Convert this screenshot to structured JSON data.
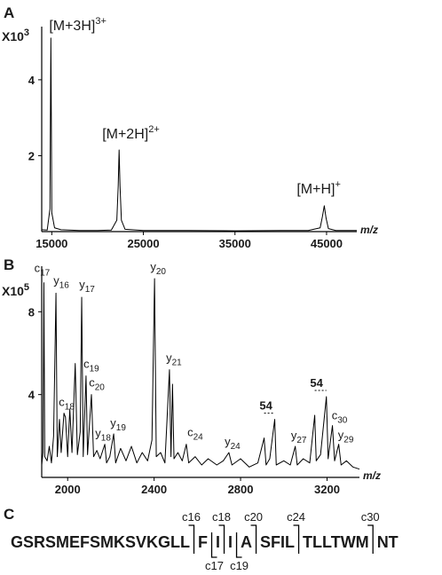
{
  "chart_data": [
    {
      "type": "line",
      "panel_label": "A",
      "color": "#000000",
      "scale_label": "X10",
      "scale_exponent": "3",
      "x_label": "m/z",
      "xlim": [
        13900,
        48300
      ],
      "xticks": [
        15000,
        25000,
        35000,
        45000
      ],
      "ylim": [
        0,
        5.4
      ],
      "yticks": [
        2,
        4
      ],
      "x": [
        13900,
        14500,
        14800,
        14850,
        14900,
        14950,
        15000,
        15300,
        16000,
        18000,
        20000,
        21500,
        22100,
        22250,
        22350,
        22450,
        22600,
        23000,
        25000,
        30000,
        35000,
        40000,
        43000,
        44300,
        44550,
        44750,
        44950,
        45200,
        46000,
        48300
      ],
      "values": [
        0.05,
        0.04,
        0.6,
        3.0,
        5.1,
        3.0,
        0.5,
        0.1,
        0.05,
        0.03,
        0.03,
        0.04,
        0.3,
        1.2,
        2.15,
        1.2,
        0.3,
        0.06,
        0.03,
        0.03,
        0.02,
        0.03,
        0.03,
        0.1,
        0.4,
        0.68,
        0.35,
        0.08,
        0.03,
        0.03
      ],
      "labels": [
        null,
        null,
        null,
        null,
        {
          "text": "[M+3H]",
          "sup": "3+"
        },
        null,
        null,
        null,
        null,
        null,
        null,
        null,
        null,
        null,
        {
          "text": "[M+2H]",
          "sup": "2+"
        },
        null,
        null,
        null,
        null,
        null,
        null,
        null,
        null,
        null,
        null,
        {
          "text": "[M+H]",
          "sup": "+"
        },
        null,
        null,
        null,
        null
      ]
    },
    {
      "type": "line",
      "panel_label": "B",
      "color": "#000000",
      "scale_label": "X10",
      "scale_exponent": "5",
      "x_label": "m/z",
      "xlim": [
        1880,
        3350
      ],
      "xticks": [
        2000,
        2400,
        2800,
        3200
      ],
      "ylim": [
        0,
        10.2
      ],
      "yticks": [
        4,
        8
      ],
      "x": [
        1880,
        1886,
        1890,
        1894,
        1905,
        1915,
        1925,
        1935,
        1946,
        1952,
        1962,
        1970,
        1983,
        1990,
        2000,
        2010,
        2020,
        2035,
        2045,
        2058,
        2065,
        2072,
        2085,
        2092,
        2110,
        2120,
        2135,
        2150,
        2172,
        2180,
        2195,
        2213,
        2222,
        2245,
        2270,
        2295,
        2320,
        2345,
        2370,
        2390,
        2402,
        2410,
        2430,
        2450,
        2471,
        2478,
        2485,
        2492,
        2510,
        2530,
        2549,
        2560,
        2590,
        2620,
        2650,
        2690,
        2720,
        2746,
        2760,
        2800,
        2840,
        2880,
        2909,
        2918,
        2935,
        2958,
        2965,
        3000,
        3030,
        3053,
        3062,
        3090,
        3120,
        3143,
        3150,
        3170,
        3197,
        3205,
        3225,
        3235,
        3254,
        3265,
        3290,
        3320,
        3350
      ],
      "values": [
        0.6,
        1.2,
        9.4,
        1.0,
        0.8,
        1.5,
        0.7,
        2.0,
        8.9,
        1.0,
        2.8,
        1.2,
        3.1,
        2.9,
        1.0,
        3.3,
        1.2,
        5.5,
        1.1,
        2.2,
        8.7,
        1.0,
        4.9,
        1.1,
        4.0,
        1.0,
        1.3,
        0.9,
        1.6,
        0.7,
        1.0,
        2.1,
        0.7,
        1.4,
        0.8,
        1.5,
        0.7,
        1.2,
        0.8,
        1.8,
        9.6,
        1.0,
        1.2,
        0.7,
        5.2,
        1.0,
        4.5,
        0.9,
        1.2,
        0.8,
        1.6,
        0.7,
        1.0,
        0.6,
        0.9,
        0.6,
        0.8,
        1.2,
        0.6,
        0.9,
        0.5,
        0.7,
        1.9,
        0.6,
        0.9,
        2.8,
        0.6,
        0.8,
        0.6,
        1.5,
        0.6,
        0.9,
        0.7,
        3.0,
        0.8,
        1.1,
        3.9,
        0.9,
        2.5,
        0.8,
        1.6,
        0.6,
        0.8,
        0.5,
        0.4
      ],
      "labels": [
        null,
        null,
        {
          "text": "c",
          "sub": "17"
        },
        null,
        null,
        null,
        null,
        null,
        {
          "text": "y",
          "sub": "16"
        },
        null,
        null,
        null,
        {
          "text": "c",
          "sub": "18"
        },
        null,
        null,
        null,
        null,
        null,
        null,
        null,
        {
          "text": "y",
          "sub": "17"
        },
        null,
        {
          "text": "c",
          "sub": "19"
        },
        null,
        {
          "text": "c",
          "sub": "20"
        },
        null,
        null,
        null,
        {
          "text": "y",
          "sub": "18"
        },
        null,
        null,
        {
          "text": "y",
          "sub": "19"
        },
        null,
        null,
        null,
        null,
        null,
        null,
        null,
        null,
        {
          "text": "y",
          "sub": "20"
        },
        null,
        null,
        null,
        {
          "text": "y",
          "sub": "21"
        },
        null,
        null,
        null,
        null,
        null,
        {
          "text": "c",
          "sub": "24"
        },
        null,
        null,
        null,
        null,
        null,
        null,
        {
          "text": "y",
          "sub": "24"
        },
        null,
        null,
        null,
        null,
        {
          "text": "54"
        },
        null,
        null,
        null,
        null,
        null,
        null,
        {
          "text": "y",
          "sub": "27"
        },
        null,
        null,
        null,
        {
          "text": "54"
        },
        null,
        null,
        null,
        null,
        {
          "text": "c",
          "sub": "30"
        },
        null,
        {
          "text": "y",
          "sub": "29"
        },
        null,
        null,
        null,
        null
      ]
    }
  ],
  "sequence": {
    "panel_label": "C",
    "segments": [
      "GSRSMEFSMKSVKGLL",
      "F",
      "I",
      "I",
      "A",
      "SFIL",
      "TLLTWM",
      "NT"
    ],
    "cleavages": [
      {
        "label": "c16",
        "side": "top"
      },
      {
        "label": "c17",
        "side": "bottom"
      },
      {
        "label": "c18",
        "side": "top"
      },
      {
        "label": "c19",
        "side": "bottom"
      },
      {
        "label": "c20",
        "side": "top"
      },
      {
        "label": "c24",
        "side": "top"
      },
      {
        "label": "c30",
        "side": "top"
      }
    ]
  }
}
